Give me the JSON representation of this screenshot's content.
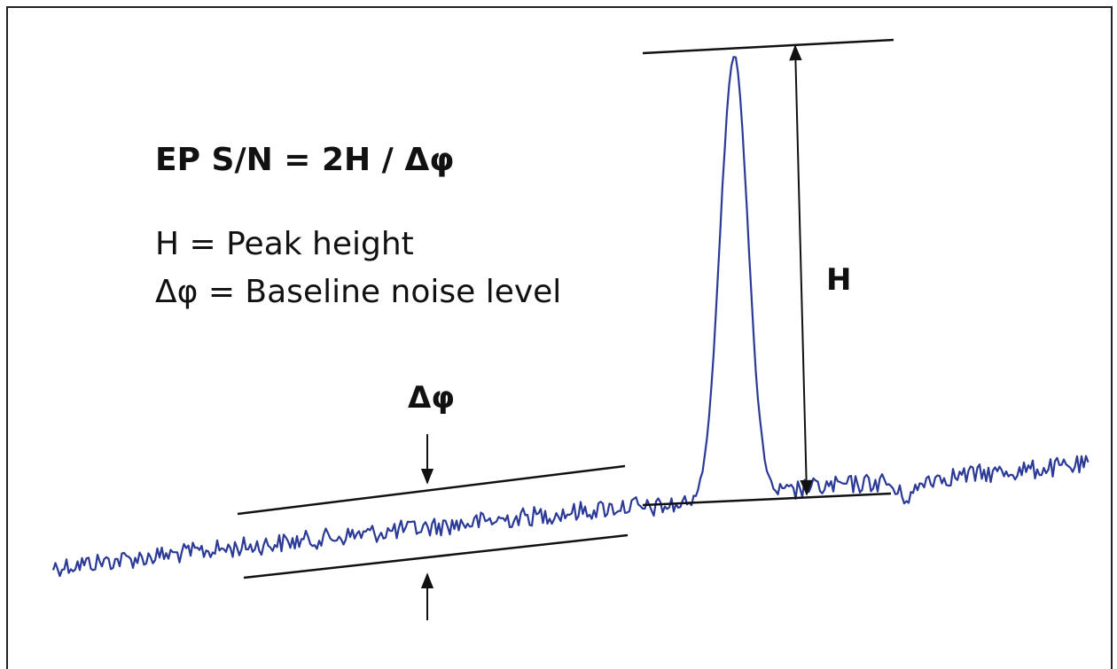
{
  "formula": "EP S/N = 2H / Δφ",
  "legend": [
    "H = Peak height",
    "Δφ = Baseline noise level"
  ],
  "noise_label": "Δφ",
  "height_label": "H"
}
